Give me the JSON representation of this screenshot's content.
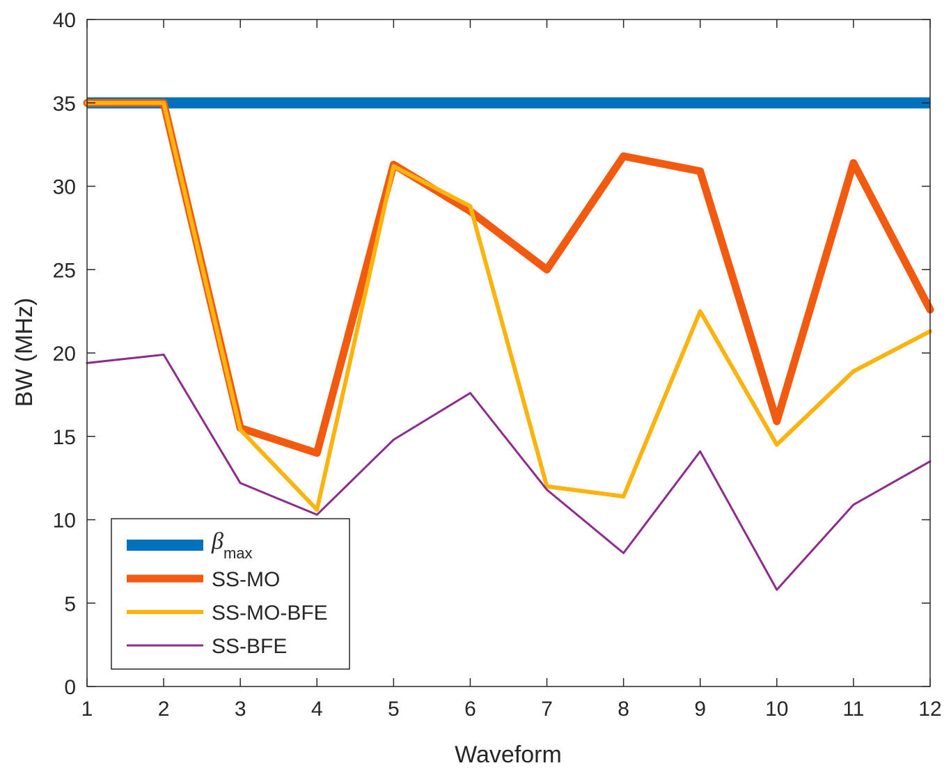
{
  "chart_data": {
    "type": "line",
    "title": "",
    "xlabel": "Waveform",
    "ylabel": "BW (MHz)",
    "xlim": [
      1,
      12
    ],
    "ylim": [
      0,
      40
    ],
    "x": [
      1,
      2,
      3,
      4,
      5,
      6,
      7,
      8,
      9,
      10,
      11,
      12
    ],
    "xticks": [
      "1",
      "2",
      "3",
      "4",
      "5",
      "6",
      "7",
      "8",
      "9",
      "10",
      "11",
      "12"
    ],
    "yticks": [
      "0",
      "5",
      "10",
      "15",
      "20",
      "25",
      "30",
      "35",
      "40"
    ],
    "grid": false,
    "legend_position": "bottom-left",
    "series": [
      {
        "name": "β_max",
        "label_main": "β",
        "label_sub": "max",
        "color": "#0072BD",
        "values": [
          35,
          35,
          35,
          35,
          35,
          35,
          35,
          35,
          35,
          35,
          35,
          35
        ]
      },
      {
        "name": "SS-MO",
        "label_main": "SS-MO",
        "label_sub": "",
        "color": "#F25A0F",
        "values": [
          35,
          35,
          15.5,
          14.0,
          31.3,
          28.5,
          25.0,
          31.8,
          30.9,
          15.9,
          31.4,
          22.6
        ]
      },
      {
        "name": "SS-MO-BFE",
        "label_main": "SS-MO-BFE",
        "label_sub": "",
        "color": "#FBB40F",
        "values": [
          35,
          35,
          15.4,
          10.6,
          31.2,
          28.8,
          12.0,
          11.4,
          22.5,
          14.5,
          18.9,
          21.3
        ]
      },
      {
        "name": "SS-BFE",
        "label_main": "SS-BFE",
        "label_sub": "",
        "color": "#8E2C8C",
        "values": [
          19.4,
          19.9,
          12.2,
          10.3,
          14.8,
          17.6,
          11.8,
          8.0,
          14.1,
          5.8,
          10.9,
          13.5
        ]
      }
    ]
  }
}
